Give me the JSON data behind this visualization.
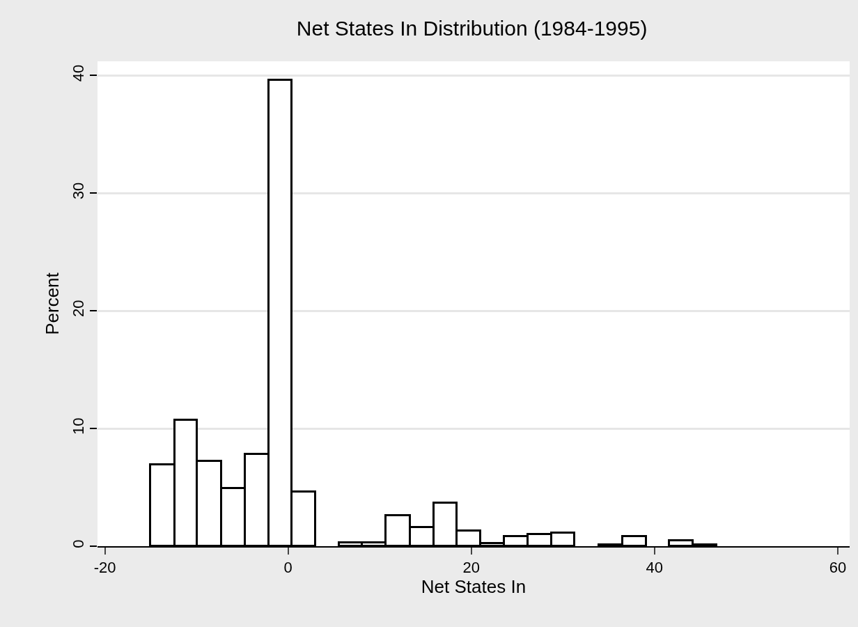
{
  "chart_data": {
    "type": "histogram",
    "title": "Net States In Distribution (1984-1995)",
    "xlabel": "Net States In",
    "ylabel": "Percent",
    "bins": [
      -15,
      -12.4,
      -9.9,
      -7.3,
      -4.7,
      -2.1,
      0.4,
      3.0,
      5.6,
      8.1,
      10.7,
      13.3,
      15.9,
      18.4,
      21.0,
      23.6,
      26.2,
      28.8,
      31.3,
      33.9,
      36.5,
      39.1,
      41.6,
      44.2,
      46.8
    ],
    "values": [
      6.9,
      10.7,
      7.2,
      4.9,
      7.8,
      39.6,
      4.6,
      0,
      0.3,
      0.3,
      2.6,
      1.6,
      3.7,
      1.3,
      0.25,
      0.8,
      1.0,
      1.1,
      0,
      0.1,
      0.8,
      0,
      0.45,
      0.1
    ],
    "color": "#ffffff",
    "xlim": [
      -20.8,
      61.3
    ],
    "ylim": [
      0,
      41.2
    ],
    "xticks": [
      -20,
      0,
      20,
      40,
      60
    ],
    "yticks": [
      0,
      10,
      20,
      30,
      40
    ],
    "grid": "y"
  }
}
